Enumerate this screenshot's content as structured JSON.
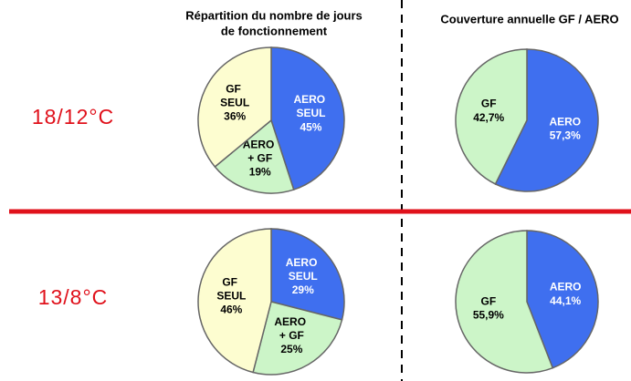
{
  "headers": [
    [
      "Répartition du nombre de jours",
      "de fonctionnement"
    ],
    [
      "Couverture annuelle GF / AERO"
    ]
  ],
  "rows": [
    "18/12°C",
    "13/8°C"
  ],
  "chart_data": [
    {
      "type": "pie",
      "categories": [
        "AERO SEUL",
        "AERO + GF",
        "GF SEUL"
      ],
      "values": [
        45,
        19,
        36
      ],
      "value_labels": [
        "45%",
        "19%",
        "36%"
      ],
      "colors": [
        "#3f6fef",
        "#ccf5c8",
        "#fdfdd0"
      ]
    },
    {
      "type": "pie",
      "categories": [
        "AERO",
        "GF"
      ],
      "values": [
        57.3,
        42.7
      ],
      "value_labels": [
        "57,3%",
        "42,7%"
      ],
      "colors": [
        "#3f6fef",
        "#ccf5c8"
      ]
    },
    {
      "type": "pie",
      "categories": [
        "AERO SEUL",
        "AERO + GF",
        "GF SEUL"
      ],
      "values": [
        29,
        25,
        46
      ],
      "value_labels": [
        "29%",
        "25%",
        "46%"
      ],
      "colors": [
        "#3f6fef",
        "#ccf5c8",
        "#fdfdd0"
      ]
    },
    {
      "type": "pie",
      "categories": [
        "AERO",
        "GF"
      ],
      "values": [
        44.1,
        55.9
      ],
      "value_labels": [
        "44,1%",
        "55,9%"
      ],
      "colors": [
        "#3f6fef",
        "#ccf5c8"
      ]
    }
  ]
}
